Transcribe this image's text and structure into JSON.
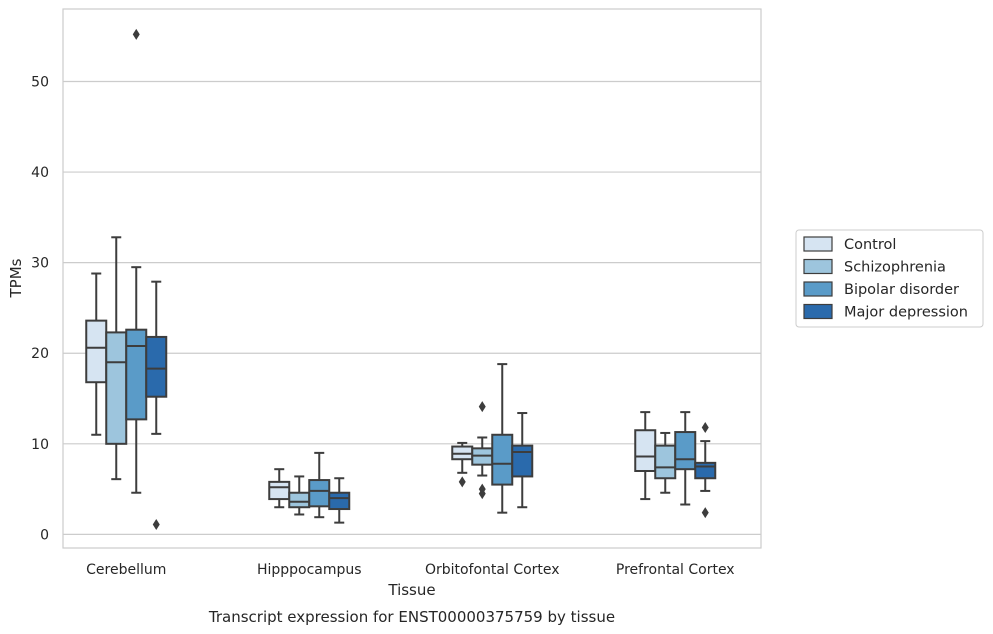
{
  "chart_data": {
    "type": "box",
    "title": "",
    "caption": "Transcript expression for ENST00000375759 by tissue",
    "xlabel": "Tissue",
    "ylabel": "TPMs",
    "ylim": [
      -1.5,
      58
    ],
    "yticks": [
      0,
      10,
      20,
      30,
      40,
      50
    ],
    "grid": true,
    "legend_position": "right",
    "categories": [
      "Cerebellum",
      "Hipppocampus",
      "Orbitofontal Cortex",
      "Prefrontal Cortex"
    ],
    "series": [
      {
        "name": "Control",
        "color": "#d6e4f2",
        "boxes": [
          {
            "whislo": 11.0,
            "q1": 16.8,
            "med": 20.6,
            "q3": 23.6,
            "whishi": 28.8,
            "fliers": []
          },
          {
            "whislo": 3.0,
            "q1": 3.9,
            "med": 5.2,
            "q3": 5.8,
            "whishi": 7.2,
            "fliers": []
          },
          {
            "whislo": 6.8,
            "q1": 8.3,
            "med": 8.9,
            "q3": 9.7,
            "whishi": 10.1,
            "fliers": [
              5.8
            ]
          },
          {
            "whislo": 3.9,
            "q1": 7.0,
            "med": 8.6,
            "q3": 11.5,
            "whishi": 13.5,
            "fliers": []
          }
        ]
      },
      {
        "name": "Schizophrenia",
        "color": "#9dc5dd",
        "boxes": [
          {
            "whislo": 6.1,
            "q1": 10.0,
            "med": 19.0,
            "q3": 22.3,
            "whishi": 32.8,
            "fliers": []
          },
          {
            "whislo": 2.2,
            "q1": 3.0,
            "med": 3.6,
            "q3": 4.6,
            "whishi": 6.4,
            "fliers": []
          },
          {
            "whislo": 6.5,
            "q1": 7.7,
            "med": 8.7,
            "q3": 9.5,
            "whishi": 10.7,
            "fliers": [
              4.5,
              5.0,
              14.1
            ]
          },
          {
            "whislo": 4.6,
            "q1": 6.2,
            "med": 7.4,
            "q3": 9.8,
            "whishi": 11.2,
            "fliers": []
          }
        ]
      },
      {
        "name": "Bipolar disorder",
        "color": "#5a9bc8",
        "boxes": [
          {
            "whislo": 4.6,
            "q1": 12.7,
            "med": 20.8,
            "q3": 22.6,
            "whishi": 29.5,
            "fliers": [
              55.2
            ]
          },
          {
            "whislo": 1.9,
            "q1": 3.1,
            "med": 4.8,
            "q3": 6.0,
            "whishi": 9.0,
            "fliers": []
          },
          {
            "whislo": 2.4,
            "q1": 5.5,
            "med": 7.8,
            "q3": 11.0,
            "whishi": 18.8,
            "fliers": []
          },
          {
            "whislo": 3.3,
            "q1": 7.2,
            "med": 8.3,
            "q3": 11.3,
            "whishi": 13.5,
            "fliers": []
          }
        ]
      },
      {
        "name": "Major depression",
        "color": "#2a6aac",
        "boxes": [
          {
            "whislo": 11.1,
            "q1": 15.2,
            "med": 18.3,
            "q3": 21.8,
            "whishi": 27.9,
            "fliers": [
              1.1
            ]
          },
          {
            "whislo": 1.3,
            "q1": 2.8,
            "med": 4.0,
            "q3": 4.6,
            "whishi": 6.2,
            "fliers": []
          },
          {
            "whislo": 3.0,
            "q1": 6.4,
            "med": 9.1,
            "q3": 9.8,
            "whishi": 13.4,
            "fliers": []
          },
          {
            "whislo": 4.8,
            "q1": 6.2,
            "med": 7.5,
            "q3": 7.9,
            "whishi": 10.3,
            "fliers": [
              2.4,
              11.8
            ]
          }
        ]
      }
    ]
  }
}
